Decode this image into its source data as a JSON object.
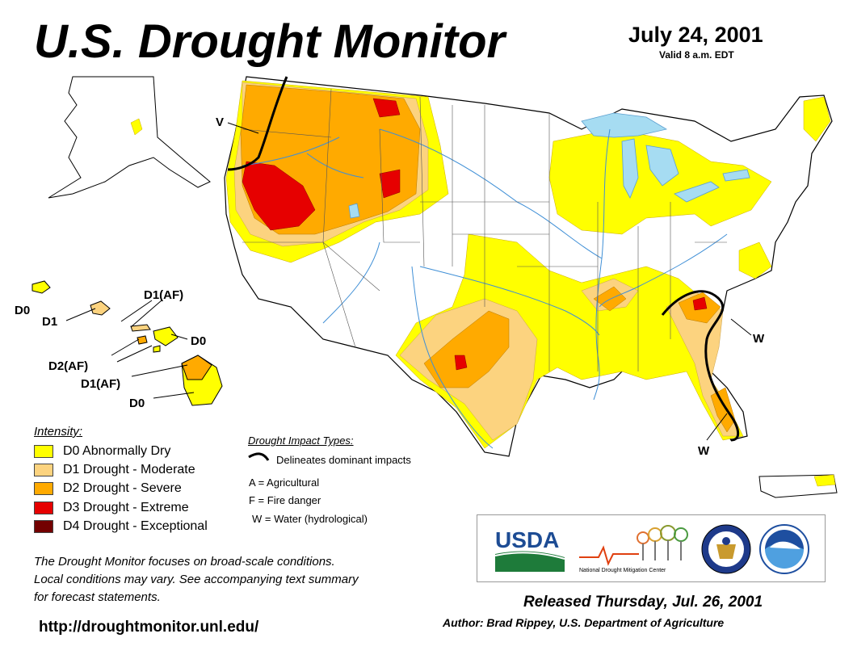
{
  "header": {
    "title": "U.S. Drought Monitor",
    "date": "July 24, 2001",
    "valid": "Valid 8 a.m. EDT"
  },
  "map": {
    "labels": {
      "nw_impact": "V",
      "se_impact_1": "W",
      "se_impact_2": "W",
      "hawaii_d0_1": "D0",
      "hawaii_d1": "D1",
      "hawaii_d1af_1": "D1(AF)",
      "hawaii_d0_2": "D0",
      "hawaii_d2af": "D2(AF)",
      "hawaii_d1af_2": "D1(AF)",
      "hawaii_d0_3": "D0"
    }
  },
  "colors": {
    "d0": "#ffff00",
    "d1": "#fcd37f",
    "d2": "#ffaa00",
    "d3": "#e60000",
    "d4": "#730000",
    "water": "#a6dcf2",
    "rivers": "#3f8fd6"
  },
  "legend": {
    "title": "Intensity:",
    "items": [
      {
        "label": "D0 Abnormally Dry"
      },
      {
        "label": "D1 Drought - Moderate"
      },
      {
        "label": "D2 Drought - Severe"
      },
      {
        "label": "D3 Drought - Extreme"
      },
      {
        "label": "D4 Drought - Exceptional"
      }
    ]
  },
  "impact_types": {
    "title": "Drought Impact Types:",
    "line_label": "Delineates dominant impacts",
    "a": "A = Agricultural",
    "f": "F = Fire danger",
    "w": "W = Water (hydrological)"
  },
  "note": {
    "line1": "The Drought Monitor focuses on broad-scale conditions.",
    "line2": "Local conditions may vary. See accompanying text summary",
    "line3": "for forecast statements."
  },
  "url": "http://droughtmonitor.unl.edu/",
  "logos": {
    "usda": "USDA",
    "ndmc": "National Drought Mitigation Center"
  },
  "footer": {
    "released": "Released Thursday, Jul. 26, 2001",
    "author": "Author: Brad Rippey, U.S. Department of Agriculture"
  }
}
